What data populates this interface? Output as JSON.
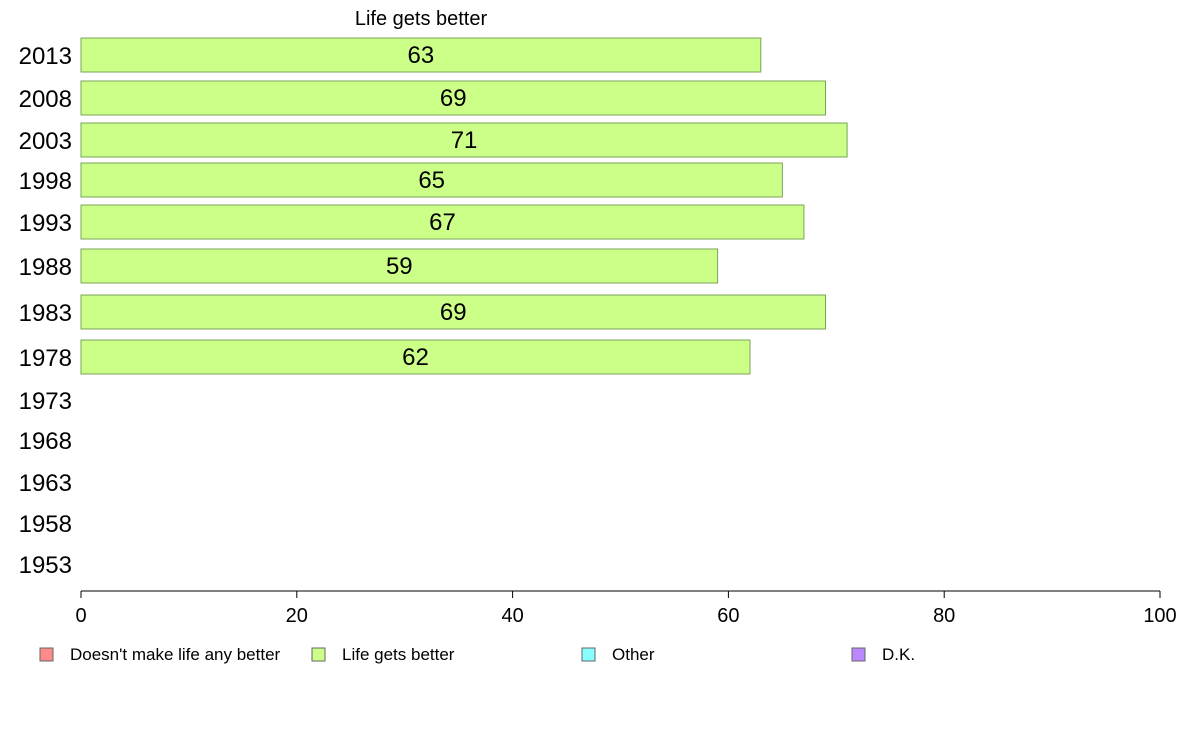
{
  "chart_data": {
    "type": "bar",
    "orientation": "horizontal",
    "title": "",
    "series_title": "Life gets better",
    "categories": [
      "2013",
      "2008",
      "2003",
      "1998",
      "1993",
      "1988",
      "1983",
      "1978",
      "1973",
      "1968",
      "1963",
      "1958",
      "1953"
    ],
    "series": [
      {
        "name": "Life gets better",
        "color": "#ccff88",
        "values": [
          63,
          69,
          71,
          65,
          67,
          59,
          69,
          62,
          null,
          null,
          null,
          null,
          null
        ]
      }
    ],
    "xlim": [
      0,
      100
    ],
    "xticks": [
      0,
      20,
      40,
      60,
      80,
      100
    ],
    "grid": false,
    "legend": {
      "placement": "bottom",
      "items": [
        {
          "label": "Doesn't make life any better",
          "color": "#ff8a8a"
        },
        {
          "label": "Life gets better",
          "color": "#ccff88"
        },
        {
          "label": "Other",
          "color": "#88ffff"
        },
        {
          "label": "D.K.",
          "color": "#bb88ff"
        }
      ]
    }
  }
}
